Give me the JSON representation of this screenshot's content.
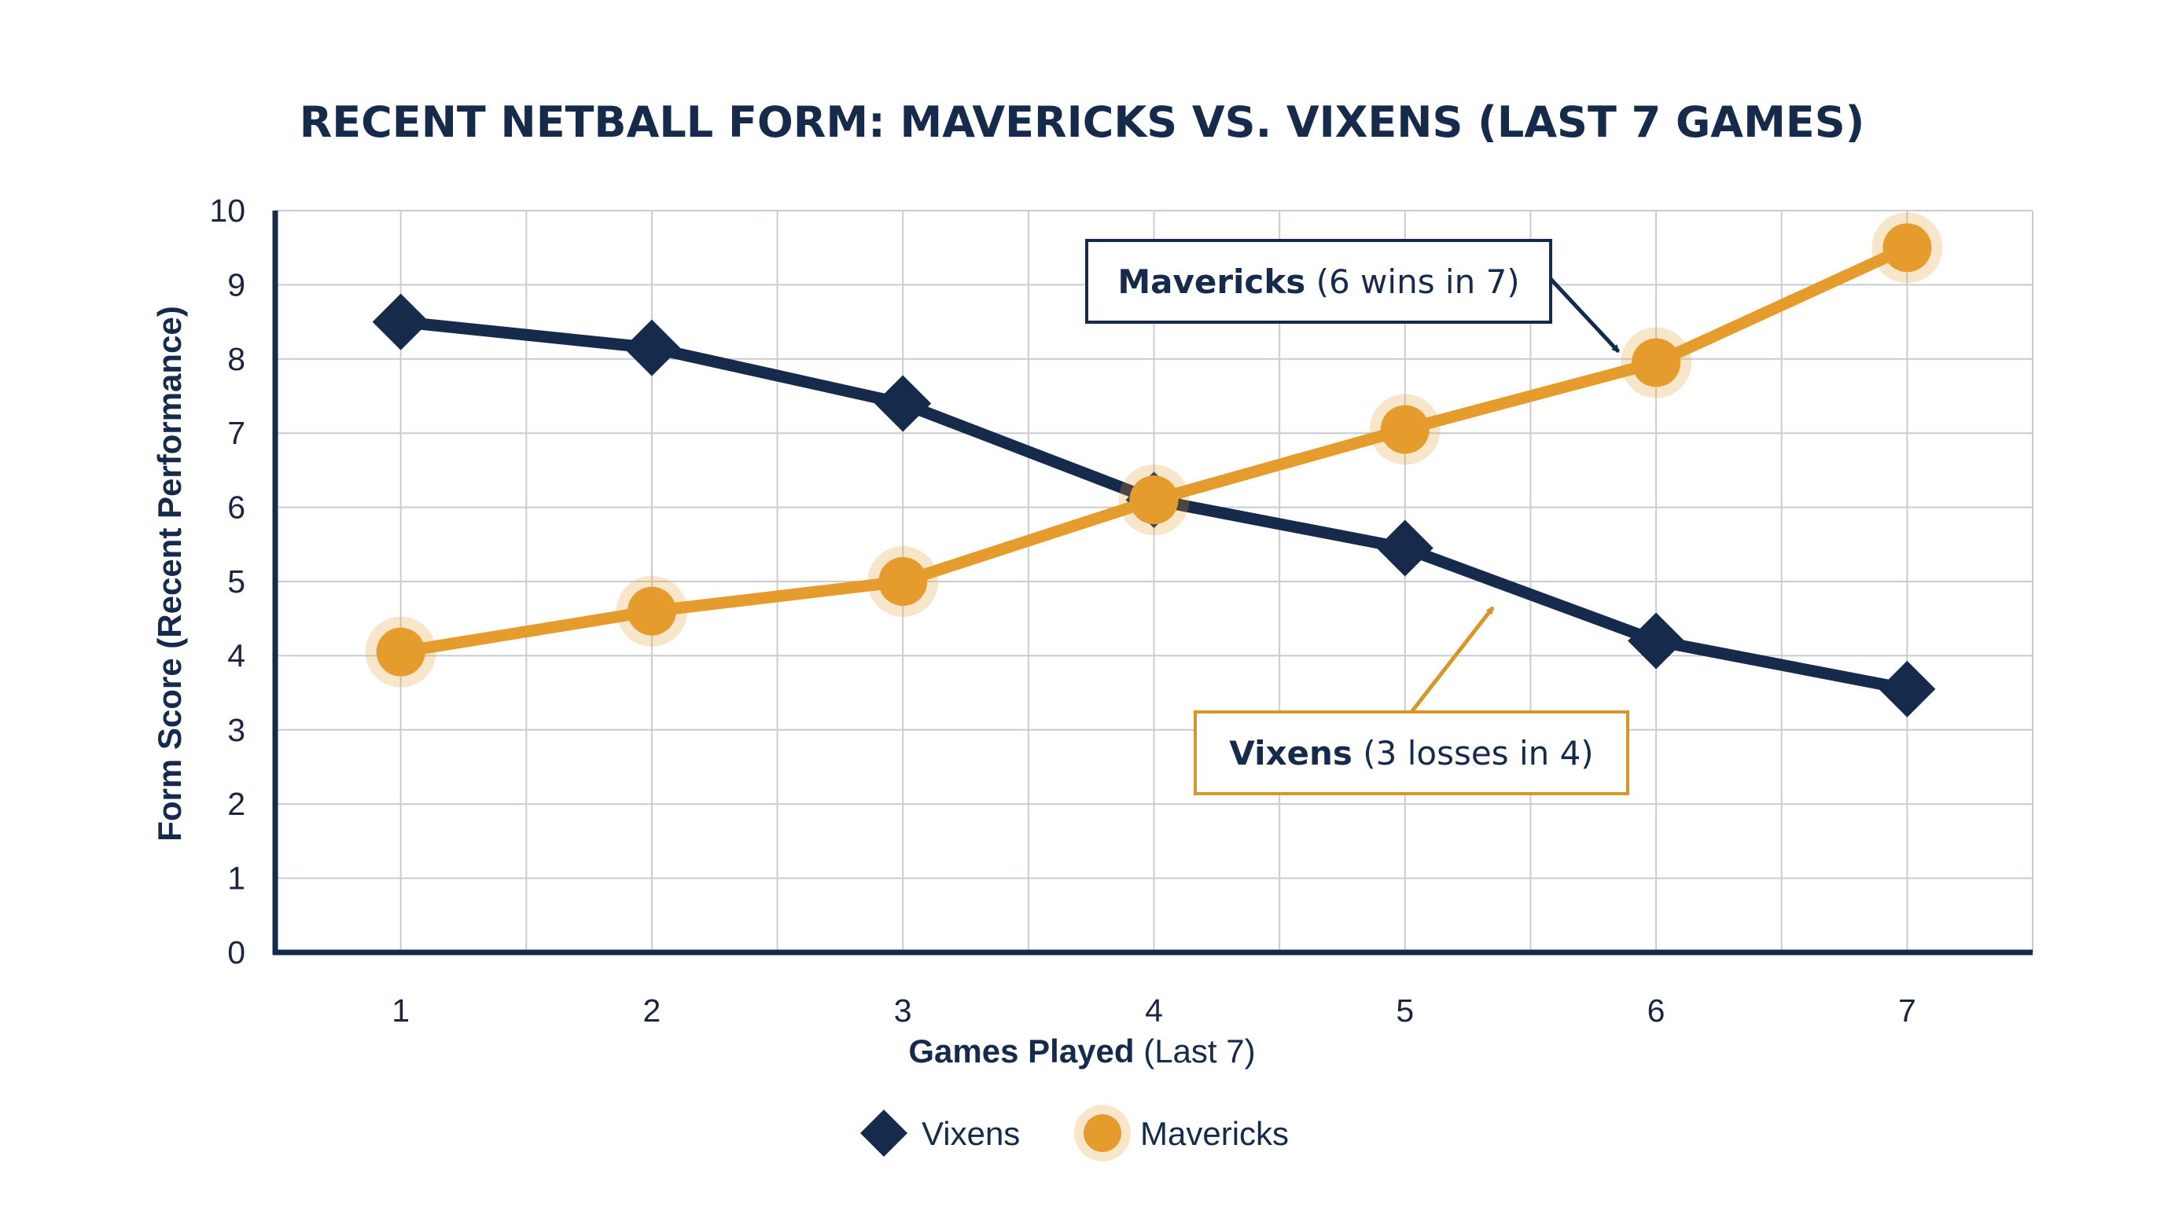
{
  "chart_data": {
    "type": "line",
    "title": "RECENT NETBALL FORM: MAVERICKS VS. VIXENS (LAST 7 GAMES)",
    "xlabel_bold": "Games Played",
    "xlabel_rest": " (Last 7)",
    "ylabel": "Form Score (Recent Performance)",
    "x": [
      1,
      2,
      3,
      4,
      5,
      6,
      7
    ],
    "xlim": [
      0.5,
      7.5
    ],
    "ylim": [
      0,
      10
    ],
    "yticks": [
      0,
      1,
      2,
      3,
      4,
      5,
      6,
      7,
      8,
      9,
      10
    ],
    "grid": true,
    "series": [
      {
        "name": "Vixens",
        "color": "#162a4c",
        "marker": "diamond",
        "values": [
          8.5,
          8.15,
          7.4,
          6.1,
          5.45,
          4.2,
          3.55
        ]
      },
      {
        "name": "Mavericks",
        "color": "#e59c2d",
        "marker": "circle",
        "values": [
          4.05,
          4.6,
          5.0,
          6.1,
          7.05,
          7.95,
          9.5
        ]
      }
    ],
    "annotations": [
      {
        "bold": "Mavericks",
        "rest": " (6 wins in 7)",
        "color": "#162a4c",
        "target_x": 5.85,
        "target_y": 8.1
      },
      {
        "bold": "Vixens",
        "rest": " (3 losses in 4)",
        "color": "#d99628",
        "target_x": 5.35,
        "target_y": 4.65
      }
    ],
    "legend_position": "bottom-center"
  }
}
